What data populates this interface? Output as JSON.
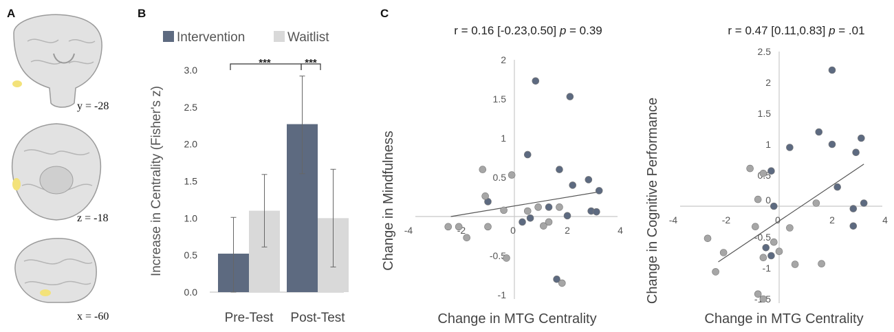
{
  "panels": {
    "a": "A",
    "b": "B",
    "c": "C"
  },
  "brain_slices": [
    {
      "label": "y = -28"
    },
    {
      "label": "z = -18"
    },
    {
      "label": "x = -60"
    }
  ],
  "colors": {
    "intervention": "#5d6a80",
    "waitlist": "#d9d9d9",
    "left_dots": "#5d6a80",
    "right_dots_mixed_gray": "#a6a6a6",
    "highlight": "#f3e27a",
    "axis": "#c8c8c8"
  },
  "chart_data": [
    {
      "type": "bar",
      "panel": "B",
      "title": "",
      "legend": [
        "Intervention",
        "Waitlist"
      ],
      "legend_position": "top",
      "categories": [
        "Pre-Test",
        "Post-Test"
      ],
      "series": [
        {
          "name": "Intervention",
          "values": [
            0.52,
            2.27
          ],
          "err_low": [
            0.0,
            1.6
          ],
          "err_high": [
            1.01,
            2.92
          ]
        },
        {
          "name": "Waitlist",
          "values": [
            1.1,
            1.0
          ],
          "err_low": [
            0.61,
            0.34
          ],
          "err_high": [
            1.59,
            1.66
          ]
        }
      ],
      "xlabel": "",
      "ylabel": "Increase in Centrality (Fisher's z)",
      "ylim": [
        0,
        3.0
      ],
      "yticks": [
        "0.0",
        "0.5",
        "1.0",
        "1.5",
        "2.0",
        "2.5",
        "3.0"
      ],
      "significance": [
        "***",
        "***"
      ]
    },
    {
      "type": "scatter",
      "panel": "C-left",
      "title": "r = 0.16 [-0.23,0.50] p = 0.39",
      "title_parts": {
        "stat": "r = 0.16 [-0.23,0.50] ",
        "p_label": "p",
        "p_value": " = 0.39"
      },
      "xlabel": "Change in MTG Centrality",
      "ylabel": "Change in Mindfulness",
      "xlim": [
        -4,
        4
      ],
      "ylim": [
        -1,
        2
      ],
      "xticks": [
        "-4",
        "-2",
        "0",
        "2",
        "4"
      ],
      "yticks": [
        "-1",
        "-0.5",
        "0",
        "0.5",
        "1",
        "1.5",
        "2"
      ],
      "trendline": {
        "x": [
          -2.4,
          3.3
        ],
        "y": [
          0.0,
          0.32
        ]
      },
      "series": [
        {
          "name": "blue",
          "points": [
            [
              0.8,
              1.73
            ],
            [
              2.1,
              1.53
            ],
            [
              0.5,
              0.79
            ],
            [
              1.7,
              0.6
            ],
            [
              2.2,
              0.4
            ],
            [
              2.8,
              0.47
            ],
            [
              3.2,
              0.33
            ],
            [
              -1.0,
              0.19
            ],
            [
              0.3,
              -0.07
            ],
            [
              0.6,
              -0.02
            ],
            [
              1.3,
              0.12
            ],
            [
              2.9,
              0.07
            ],
            [
              3.1,
              0.06
            ],
            [
              2.0,
              0.01
            ],
            [
              1.6,
              -0.8
            ]
          ]
        },
        {
          "name": "gray",
          "points": [
            [
              -1.2,
              0.6
            ],
            [
              -0.1,
              0.53
            ],
            [
              -1.1,
              0.26
            ],
            [
              -0.4,
              0.08
            ],
            [
              0.5,
              0.07
            ],
            [
              0.9,
              0.12
            ],
            [
              1.7,
              0.12
            ],
            [
              1.3,
              -0.07
            ],
            [
              1.1,
              -0.12
            ],
            [
              -2.5,
              -0.13
            ],
            [
              -2.1,
              -0.13
            ],
            [
              -1.0,
              -0.13
            ],
            [
              -1.8,
              -0.27
            ],
            [
              -0.3,
              -0.53
            ],
            [
              1.8,
              -0.85
            ]
          ]
        }
      ]
    },
    {
      "type": "scatter",
      "panel": "C-right",
      "title": "r = 0.47 [0.11,0.83] p = .01",
      "title_parts": {
        "stat": "r = 0.47 [0.11,0.83] ",
        "p_label": "p",
        "p_value": " = .01"
      },
      "xlabel": "Change in MTG Centrality",
      "ylabel": "Change in Cognitive Performance",
      "xlim": [
        -4,
        4
      ],
      "ylim": [
        -1.5,
        2.5
      ],
      "xticks": [
        "-4",
        "-2",
        "0",
        "2",
        "4"
      ],
      "yticks": [
        "-1.5",
        "-1",
        "-0.5",
        "0",
        "0.5",
        "1",
        "1.5",
        "2",
        "2.5"
      ],
      "trendline": {
        "x": [
          -2.3,
          3.2
        ],
        "y": [
          -0.9,
          0.68
        ]
      },
      "series": [
        {
          "name": "blue",
          "points": [
            [
              2.0,
              2.2
            ],
            [
              1.5,
              1.2
            ],
            [
              3.1,
              1.1
            ],
            [
              2.0,
              1.0
            ],
            [
              0.4,
              0.95
            ],
            [
              2.9,
              0.87
            ],
            [
              -0.3,
              0.57
            ],
            [
              2.2,
              0.31
            ],
            [
              3.2,
              0.05
            ],
            [
              -0.2,
              0.0
            ],
            [
              2.8,
              -0.04
            ],
            [
              2.8,
              -0.32
            ],
            [
              -0.3,
              -0.8
            ],
            [
              -0.5,
              -0.67
            ]
          ]
        },
        {
          "name": "gray",
          "points": [
            [
              -1.1,
              0.61
            ],
            [
              -0.6,
              0.53
            ],
            [
              -0.8,
              0.11
            ],
            [
              1.4,
              0.05
            ],
            [
              0.4,
              -0.35
            ],
            [
              -0.9,
              -0.33
            ],
            [
              -2.7,
              -0.52
            ],
            [
              -0.2,
              -0.58
            ],
            [
              -2.1,
              -0.75
            ],
            [
              -0.6,
              -0.83
            ],
            [
              0.0,
              -0.73
            ],
            [
              0.6,
              -0.94
            ],
            [
              1.6,
              -0.93
            ],
            [
              -2.4,
              -1.06
            ],
            [
              -0.8,
              -1.42
            ],
            [
              -0.6,
              -1.5
            ]
          ]
        }
      ]
    }
  ]
}
